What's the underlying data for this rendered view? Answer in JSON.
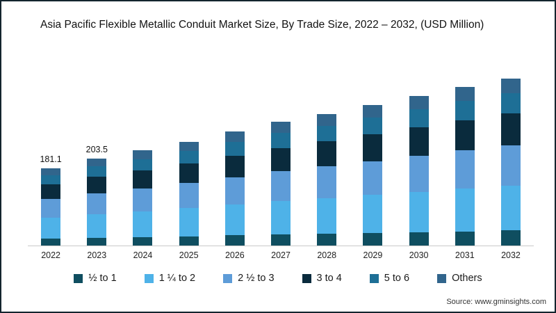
{
  "title": "Asia Pacific Flexible Metallic Conduit Market Size, By Trade Size, 2022 – 2032, (USD Million)",
  "source": "Source: www.gminsights.com",
  "chart_data": {
    "type": "bar",
    "stacked": true,
    "title": "Asia Pacific Flexible Metallic Conduit Market Size, By Trade Size, 2022 – 2032, (USD Million)",
    "xlabel": "",
    "ylabel": "USD Million",
    "legend_position": "bottom",
    "grid": false,
    "categories": [
      "2022",
      "2023",
      "2024",
      "2025",
      "2026",
      "2027",
      "2028",
      "2029",
      "2030",
      "2031",
      "2032"
    ],
    "totals": [
      181.1,
      203.5,
      222,
      243,
      266,
      289,
      308,
      329,
      350,
      371,
      391
    ],
    "bar_labels": [
      "181.1",
      "203.5",
      "",
      "",
      "",
      "",
      "",
      "",
      "",
      "",
      ""
    ],
    "series": [
      {
        "name": "½ to 1",
        "color": "#0f4e60",
        "values": [
          16.3,
          18.3,
          20.0,
          21.9,
          23.9,
          26.0,
          27.7,
          29.6,
          31.5,
          33.4,
          35.2
        ]
      },
      {
        "name": "1 ¼ to 2",
        "color": "#4eb2e8",
        "values": [
          48.9,
          54.9,
          59.9,
          65.6,
          71.8,
          78.0,
          83.2,
          88.8,
          94.5,
          100.2,
          105.6
        ]
      },
      {
        "name": "2 ½ to 3",
        "color": "#5e9cd8",
        "values": [
          43.5,
          48.8,
          53.3,
          58.3,
          63.8,
          69.4,
          73.9,
          79.0,
          84.0,
          89.0,
          93.8
        ]
      },
      {
        "name": "3 to 4",
        "color": "#0a2b3d",
        "values": [
          34.4,
          38.7,
          42.2,
          46.2,
          50.5,
          54.9,
          58.5,
          62.5,
          66.5,
          70.5,
          74.3
        ]
      },
      {
        "name": "5 to 6",
        "color": "#1e6f96",
        "values": [
          21.7,
          24.4,
          26.6,
          29.2,
          31.9,
          34.7,
          37.0,
          39.5,
          42.0,
          44.5,
          46.9
        ]
      },
      {
        "name": "Others",
        "color": "#31658c",
        "values": [
          16.3,
          18.4,
          20.0,
          21.8,
          24.1,
          26.0,
          27.7,
          29.6,
          31.5,
          33.4,
          35.2
        ]
      }
    ]
  }
}
